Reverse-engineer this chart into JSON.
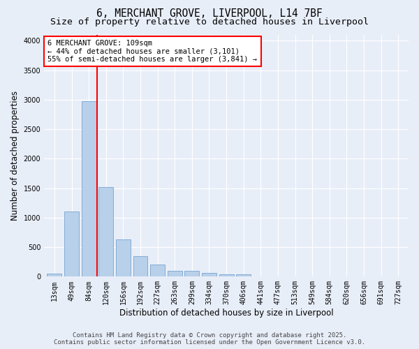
{
  "title_line1": "6, MERCHANT GROVE, LIVERPOOL, L14 7BF",
  "title_line2": "Size of property relative to detached houses in Liverpool",
  "xlabel": "Distribution of detached houses by size in Liverpool",
  "ylabel": "Number of detached properties",
  "categories": [
    "13sqm",
    "49sqm",
    "84sqm",
    "120sqm",
    "156sqm",
    "192sqm",
    "227sqm",
    "263sqm",
    "299sqm",
    "334sqm",
    "370sqm",
    "406sqm",
    "441sqm",
    "477sqm",
    "513sqm",
    "549sqm",
    "584sqm",
    "620sqm",
    "656sqm",
    "691sqm",
    "727sqm"
  ],
  "bar_values": [
    55,
    1100,
    2980,
    1520,
    630,
    345,
    210,
    95,
    95,
    60,
    35,
    35,
    5,
    0,
    0,
    0,
    0,
    0,
    0,
    0,
    0
  ],
  "bar_color": "#b8d0ea",
  "bar_edgecolor": "#6699cc",
  "vline_color": "red",
  "vline_x": 2.5,
  "annotation_text": "6 MERCHANT GROVE: 109sqm\n← 44% of detached houses are smaller (3,101)\n55% of semi-detached houses are larger (3,841) →",
  "annotation_box_color": "white",
  "annotation_box_edgecolor": "red",
  "ylim": [
    0,
    4100
  ],
  "yticks": [
    0,
    500,
    1000,
    1500,
    2000,
    2500,
    3000,
    3500,
    4000
  ],
  "background_color": "#e8eef8",
  "grid_color": "white",
  "footer_line1": "Contains HM Land Registry data © Crown copyright and database right 2025.",
  "footer_line2": "Contains public sector information licensed under the Open Government Licence v3.0.",
  "title_fontsize": 10.5,
  "subtitle_fontsize": 9.5,
  "axis_label_fontsize": 8.5,
  "tick_fontsize": 7,
  "annotation_fontsize": 7.5,
  "footer_fontsize": 6.5
}
